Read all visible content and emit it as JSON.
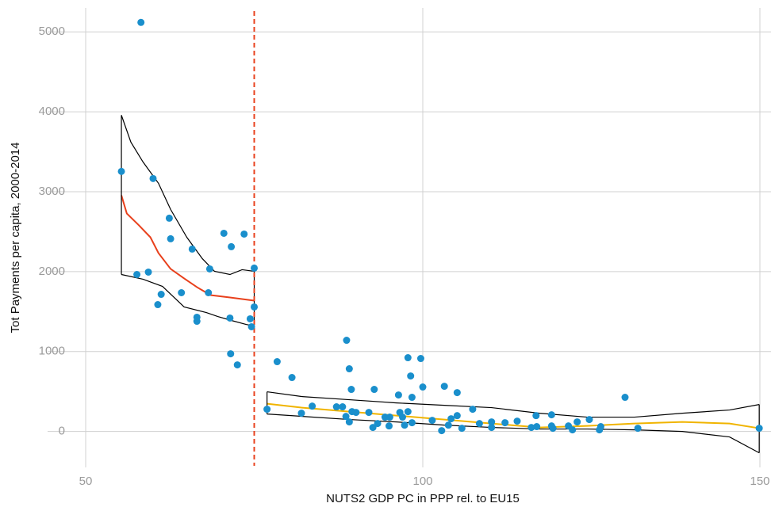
{
  "chart_data": {
    "type": "scatter",
    "xlabel": "NUTS2 GDP PC in PPP rel. to EU15",
    "ylabel": "Tot Payments per capita, 2000-2014",
    "xlim": [
      50,
      150
    ],
    "ylim": [
      -450,
      5300
    ],
    "xticks": [
      50,
      100,
      150
    ],
    "yticks": [
      0,
      1000,
      2000,
      3000,
      4000,
      5000
    ],
    "grid": true,
    "color": "#1a8fcc",
    "x": [
      55.3,
      58.2,
      57.6,
      59.3,
      60.0,
      60.7,
      61.2,
      62.4,
      62.6,
      64.2,
      65.8,
      66.5,
      66.5,
      68.4,
      68.2,
      70.5,
      71.4,
      71.6,
      71.5,
      72.5,
      73.5,
      74.4,
      74.6,
      75.0,
      75.0,
      76.9,
      78.4,
      80.6,
      82.0,
      83.6,
      87.2,
      88.1,
      88.7,
      89.1,
      89.4,
      88.6,
      89.1,
      89.5,
      90.1,
      92.0,
      92.8,
      92.6,
      93.3,
      94.4,
      95.0,
      95.1,
      96.4,
      96.6,
      97.0,
      97.3,
      97.8,
      97.8,
      98.2,
      98.4,
      98.4,
      99.7,
      100.0,
      101.4,
      102.8,
      103.2,
      103.8,
      104.2,
      105.1,
      105.1,
      105.8,
      107.4,
      108.4,
      110.2,
      110.2,
      112.2,
      114.0,
      116.1,
      116.8,
      116.9,
      119.1,
      119.1,
      119.3,
      121.6,
      122.2,
      122.9,
      124.7,
      126.2,
      126.4,
      130.0,
      131.9,
      149.9
    ],
    "values": [
      3254,
      5119,
      1964,
      1994,
      3165,
      1587,
      1716,
      2669,
      2411,
      1736,
      2282,
      1429,
      1379,
      2034,
      1736,
      2480,
      1419,
      2312,
      972,
      833,
      2470,
      1409,
      1310,
      2044,
      1558,
      278,
      873,
      675,
      228,
      317,
      308,
      308,
      1141,
      784,
      526,
      188,
      119,
      248,
      238,
      238,
      526,
      50,
      99,
      179,
      69,
      179,
      456,
      238,
      179,
      79,
      923,
      248,
      694,
      427,
      109,
      913,
      556,
      139,
      10,
      565,
      79,
      159,
      486,
      198,
      40,
      278,
      99,
      119,
      50,
      109,
      129,
      50,
      198,
      60,
      208,
      69,
      40,
      69,
      20,
      119,
      149,
      20,
      60,
      427,
      40,
      40
    ],
    "cutoff": {
      "value": 75,
      "color": "#e8401c"
    },
    "lines": [
      {
        "color": "#e8401c",
        "x": [
          55.3,
          56.1,
          57.9,
          59.6,
          60.8,
          62.6,
          64.6,
          66.5,
          68.5,
          71.4,
          75.0
        ],
        "values": [
          2955,
          2728,
          2579,
          2430,
          2232,
          2034,
          1915,
          1806,
          1706,
          1677,
          1637
        ]
      },
      {
        "color": "#000000",
        "x": [
          55.3,
          56.7,
          58.5,
          60.8,
          62.6,
          65.0,
          67.3,
          69.1,
          71.4,
          73.2,
          75.0
        ],
        "values": [
          3958,
          3621,
          3373,
          3105,
          2778,
          2430,
          2163,
          2004,
          1964,
          2024,
          2004
        ]
      },
      {
        "color": "#000000",
        "x": [
          55.3,
          58.5,
          61.4,
          64.6,
          67.9,
          69.6,
          71.6,
          73.8,
          75.0
        ],
        "values": [
          1964,
          1905,
          1815,
          1558,
          1488,
          1438,
          1389,
          1339,
          1319
        ]
      },
      {
        "color": "#f0b400",
        "x": [
          76.9,
          82,
          89.1,
          96.1,
          103.2,
          110.2,
          117.3,
          124.4,
          131.4,
          138.5,
          145.5,
          149.9
        ],
        "values": [
          347,
          298,
          248,
          198,
          149,
          99,
          50,
          69,
          99,
          119,
          99,
          40
        ]
      },
      {
        "color": "#000000",
        "x": [
          76.9,
          82,
          89.1,
          96.1,
          103.2,
          110.2,
          117.3,
          124.4,
          131.4,
          138.5,
          145.5,
          149.9
        ],
        "values": [
          496,
          437,
          397,
          357,
          327,
          298,
          228,
          179,
          179,
          228,
          268,
          337
        ]
      },
      {
        "color": "#000000",
        "x": [
          76.9,
          89.1,
          96.1,
          103.2,
          110.2,
          117.3,
          124.4,
          131.4,
          138.5,
          145.5,
          149.9
        ],
        "values": [
          218,
          149,
          119,
          79,
          50,
          30,
          30,
          20,
          0,
          -69,
          -268
        ]
      }
    ]
  }
}
